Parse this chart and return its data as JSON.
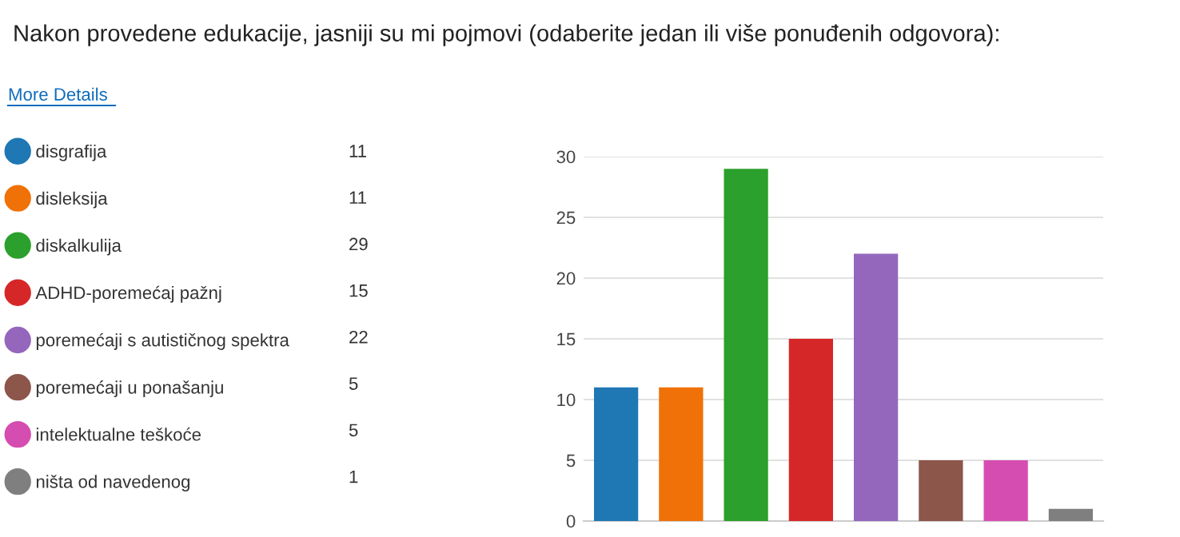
{
  "chart_data": {
    "type": "bar",
    "title": "Nakon provedene edukacije, jasniji su mi pojmovi (odaberite jedan ili više ponuđenih odgovora):",
    "annotations": [
      "More Details",
      "11",
      "11",
      "29",
      "15",
      "22",
      "5",
      "5",
      "1"
    ],
    "categories": [
      null,
      null,
      null,
      null,
      null,
      null,
      null,
      null
    ],
    "series": [
      {
        "name": "disgrafija",
        "color": "#1f77b4",
        "values": [
          11,
          null,
          null,
          null,
          null,
          null,
          null,
          null
        ]
      },
      {
        "name": "disleksija",
        "color": "#ef7108",
        "values": [
          null,
          11,
          null,
          null,
          null,
          null,
          null,
          null
        ]
      },
      {
        "name": "diskalkulija",
        "color": "#2ca02c",
        "values": [
          null,
          null,
          29,
          null,
          null,
          null,
          null,
          null
        ]
      },
      {
        "name": "ADHD-poremećaj pažnj",
        "color": "#d62728",
        "values": [
          null,
          null,
          null,
          15,
          null,
          null,
          null,
          null
        ]
      },
      {
        "name": "poremećaji s autističnog spektra",
        "color": "#9467bd",
        "values": [
          null,
          null,
          null,
          null,
          22,
          null,
          null,
          null
        ]
      },
      {
        "name": "poremećaji u ponašanju",
        "color": "#8c564b",
        "values": [
          null,
          null,
          null,
          null,
          null,
          5,
          null,
          null
        ]
      },
      {
        "name": "intelektualne teškoće",
        "color": "#d64db1",
        "values": [
          null,
          null,
          null,
          null,
          null,
          null,
          5,
          null
        ]
      },
      {
        "name": "ništa od navedenog",
        "color": "#7f7f7f",
        "values": [
          null,
          null,
          null,
          null,
          null,
          null,
          null,
          1
        ]
      }
    ],
    "ylim": [
      0,
      30
    ],
    "yticks": [
      0,
      5,
      10,
      15,
      20,
      25,
      30
    ],
    "grid": "y",
    "legend": "left",
    "tick_labels": "y"
  }
}
